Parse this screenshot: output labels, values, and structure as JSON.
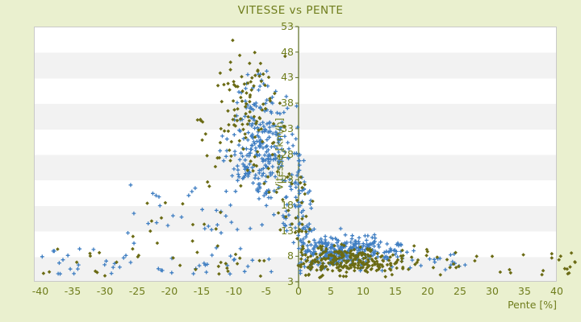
{
  "chart_data": {
    "type": "scatter",
    "title": "VITESSE vs PENTE",
    "xlabel": "Pente [%]",
    "ylabel": "Vitesse [km/h]",
    "xlim": [
      -41,
      40
    ],
    "ylim": [
      3,
      53
    ],
    "xticks": [
      -40,
      -35,
      -30,
      -25,
      -20,
      -15,
      -10,
      -5,
      0,
      5,
      10,
      15,
      20,
      25,
      30,
      35,
      40
    ],
    "yticks": [
      3,
      8,
      13,
      18,
      23,
      28,
      33,
      38,
      43,
      48,
      53
    ],
    "grid": "alternating-horizontal-bands",
    "legend": "none",
    "colors": {
      "background": "#eaf0cf",
      "plot_background": "#ffffff",
      "band": "#f2f2f2",
      "plot_border": "#c9c9c9",
      "text": "#6f7d1c",
      "axis_line": "#5a6b20"
    },
    "seed": 42,
    "series": [
      {
        "name": "vitesse-points-blue",
        "marker": "plus",
        "color": "#3f7ec2",
        "clusters": [
          {
            "n": 240,
            "x": {
              "d": "n",
              "m": -5.5,
              "s": 2.6,
              "lo": -14.5,
              "hi": 0.5
            },
            "y": {
              "d": "n",
              "m": 29,
              "s": 4.6,
              "lo": 19,
              "hi": 43
            }
          },
          {
            "n": 18,
            "x": {
              "d": "n",
              "m": -6,
              "s": 1.8,
              "lo": -10,
              "hi": -2
            },
            "y": {
              "d": "n",
              "m": 40.5,
              "s": 2,
              "lo": 37,
              "hi": 45
            }
          },
          {
            "n": 280,
            "x": {
              "d": "n",
              "m": 7,
              "s": 4,
              "lo": 0.2,
              "hi": 19
            },
            "y": {
              "d": "n",
              "m": 8.8,
              "s": 1.7,
              "lo": 5,
              "hi": 14
            }
          },
          {
            "n": 45,
            "x": {
              "d": "n",
              "m": 0.4,
              "s": 0.7,
              "lo": -1,
              "hi": 2
            },
            "y": {
              "d": "u",
              "lo": 4.5,
              "hi": 28
            }
          },
          {
            "n": 45,
            "x": {
              "d": "u",
              "lo": -40,
              "hi": -4
            },
            "y": {
              "d": "u",
              "lo": 4.3,
              "hi": 9.5
            }
          },
          {
            "n": 30,
            "x": {
              "d": "u",
              "lo": -27,
              "hi": -8
            },
            "y": {
              "d": "u",
              "lo": 9.5,
              "hi": 22
            }
          },
          {
            "n": 45,
            "x": {
              "d": "n",
              "m": -2.5,
              "s": 3,
              "lo": -9,
              "hi": 3
            },
            "y": {
              "d": "u",
              "lo": 12.5,
              "hi": 23
            }
          },
          {
            "n": 14,
            "x": {
              "d": "u",
              "lo": 17,
              "hi": 26
            },
            "y": {
              "d": "u",
              "lo": 5,
              "hi": 8.5
            }
          }
        ],
        "extra_points": [
          [
            -34.8,
            4.6
          ],
          [
            -36.5,
            7.3
          ],
          [
            23.6,
            6.3
          ],
          [
            24.2,
            6.6
          ]
        ]
      },
      {
        "name": "vitesse-points-olive",
        "marker": "diamond",
        "color": "#6b6b14",
        "clusters": [
          {
            "n": 75,
            "x": {
              "d": "n",
              "m": -7.5,
              "s": 2.8,
              "lo": -16,
              "hi": -1
            },
            "y": {
              "d": "n",
              "m": 39,
              "s": 5,
              "lo": 27,
              "hi": 51
            }
          },
          {
            "n": 45,
            "x": {
              "d": "u",
              "lo": -16,
              "hi": -1
            },
            "y": {
              "d": "u",
              "lo": 21,
              "hi": 36
            }
          },
          {
            "n": 250,
            "x": {
              "d": "n",
              "m": 8,
              "s": 4.5,
              "lo": 0.2,
              "hi": 20
            },
            "y": {
              "d": "n",
              "m": 7,
              "s": 1.5,
              "lo": 3.8,
              "hi": 10.5
            }
          },
          {
            "n": 28,
            "x": {
              "d": "u",
              "lo": 17,
              "hi": 43
            },
            "y": {
              "d": "u",
              "lo": 4.3,
              "hi": 9
            }
          },
          {
            "n": 30,
            "x": {
              "d": "u",
              "lo": -40,
              "hi": -5
            },
            "y": {
              "d": "u",
              "lo": 4,
              "hi": 9.5
            }
          },
          {
            "n": 14,
            "x": {
              "d": "u",
              "lo": -28,
              "hi": -9
            },
            "y": {
              "d": "u",
              "lo": 9.5,
              "hi": 20
            }
          },
          {
            "n": 22,
            "x": {
              "d": "n",
              "m": 0.5,
              "s": 0.8,
              "lo": -1.5,
              "hi": 2.5
            },
            "y": {
              "d": "u",
              "lo": 4,
              "hi": 24
            }
          },
          {
            "n": 12,
            "x": {
              "d": "u",
              "lo": -5,
              "hi": 4
            },
            "y": {
              "d": "u",
              "lo": 12,
              "hi": 22
            }
          }
        ],
        "extra_points": [
          [
            40.6,
            8.0
          ],
          [
            41.6,
            5.5
          ],
          [
            42.8,
            6.9
          ],
          [
            41.9,
            4.7
          ],
          [
            -10.2,
            50.3
          ]
        ]
      }
    ]
  }
}
